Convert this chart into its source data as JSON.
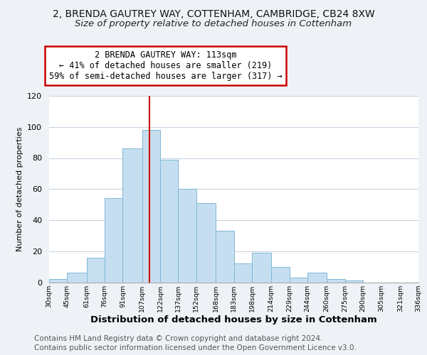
{
  "title_line1": "2, BRENDA GAUTREY WAY, COTTENHAM, CAMBRIDGE, CB24 8XW",
  "title_line2": "Size of property relative to detached houses in Cottenham",
  "xlabel": "Distribution of detached houses by size in Cottenham",
  "ylabel": "Number of detached properties",
  "bin_edges": [
    30,
    45,
    61,
    76,
    91,
    107,
    122,
    137,
    152,
    168,
    183,
    198,
    214,
    229,
    244,
    260,
    275,
    290,
    305,
    321,
    336
  ],
  "bar_heights": [
    2,
    6,
    16,
    54,
    86,
    98,
    79,
    60,
    51,
    33,
    12,
    19,
    10,
    3,
    6,
    2,
    1,
    0,
    0,
    0
  ],
  "bar_color": "#c6dff0",
  "bar_edgecolor": "#7fb8d8",
  "vline_x": 113,
  "vline_color": "#cc0000",
  "annotation_line1": "2 BRENDA GAUTREY WAY: 113sqm",
  "annotation_line2": "← 41% of detached houses are smaller (219)",
  "annotation_line3": "59% of semi-detached houses are larger (317) →",
  "annotation_box_color": "#ffffff",
  "annotation_box_edgecolor": "#cc0000",
  "ylim": [
    0,
    120
  ],
  "yticks": [
    0,
    20,
    40,
    60,
    80,
    100,
    120
  ],
  "xtick_labels": [
    "30sqm",
    "45sqm",
    "61sqm",
    "76sqm",
    "91sqm",
    "107sqm",
    "122sqm",
    "137sqm",
    "152sqm",
    "168sqm",
    "183sqm",
    "198sqm",
    "214sqm",
    "229sqm",
    "244sqm",
    "260sqm",
    "275sqm",
    "290sqm",
    "305sqm",
    "321sqm",
    "336sqm"
  ],
  "footer_line1": "Contains HM Land Registry data © Crown copyright and database right 2024.",
  "footer_line2": "Contains public sector information licensed under the Open Government Licence v3.0.",
  "background_color": "#eef2f7",
  "plot_background_color": "#ffffff",
  "grid_color": "#c8d4e0",
  "title_fontsize": 10,
  "subtitle_fontsize": 9.5,
  "xlabel_fontsize": 9.5,
  "ylabel_fontsize": 8,
  "footer_fontsize": 7.5,
  "annotation_fontsize": 8.5
}
